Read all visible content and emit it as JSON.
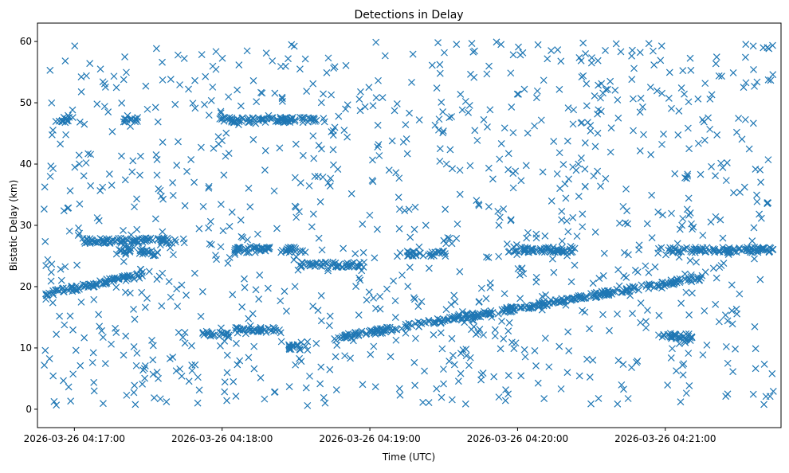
{
  "chart_data": {
    "type": "scatter",
    "title": "Detections in Delay",
    "xlabel": "Time (UTC)",
    "ylabel": "Bistatic Delay (km)",
    "x_axis": {
      "kind": "time",
      "range": [
        "2026-03-26 04:16:45",
        "2026-03-26 04:21:47"
      ],
      "ticks": [
        "2026-03-26 04:17:00",
        "2026-03-26 04:18:00",
        "2026-03-26 04:19:00",
        "2026-03-26 04:20:00",
        "2026-03-26 04:21:00"
      ]
    },
    "y_axis": {
      "range": [
        -3,
        63
      ],
      "ticks": [
        "0",
        "10",
        "20",
        "30",
        "40",
        "50",
        "60"
      ]
    },
    "grid": false,
    "legend": "none",
    "marker": "x",
    "color": "#1f77b4",
    "series": [
      {
        "segments": [
          {
            "start": "2026-03-26 04:16:48",
            "end": "2026-03-26 04:17:31",
            "y_start": 18.8,
            "y_end": 22.2
          },
          {
            "start": "2026-03-26 04:18:45",
            "end": "2026-03-26 04:21:15",
            "y_start": 11.5,
            "y_end": 21.5
          },
          {
            "start": "2026-03-26 04:17:18",
            "end": "2026-03-26 04:17:34",
            "y_start": 26.3,
            "y_end": 25.4
          },
          {
            "start": "2026-03-26 04:18:05",
            "end": "2026-03-26 04:18:34",
            "y_start": 26.0,
            "y_end": 26.0
          },
          {
            "start": "2026-03-26 04:19:15",
            "end": "2026-03-26 04:19:31",
            "y_start": 25.4,
            "y_end": 25.4
          },
          {
            "start": "2026-03-26 04:19:56",
            "end": "2026-03-26 04:20:24",
            "y_start": 26.0,
            "y_end": 26.0
          },
          {
            "start": "2026-03-26 04:20:58",
            "end": "2026-03-26 04:21:44",
            "y_start": 26.0,
            "y_end": 26.0
          },
          {
            "start": "2026-03-26 04:17:03",
            "end": "2026-03-26 04:17:45",
            "y_start": 27.5,
            "y_end": 27.5
          },
          {
            "start": "2026-03-26 04:18:31",
            "end": "2026-03-26 04:18:58",
            "y_start": 23.6,
            "y_end": 23.6
          },
          {
            "start": "2026-03-26 04:17:52",
            "end": "2026-03-26 04:18:03",
            "y_start": 12.3,
            "y_end": 12.0
          },
          {
            "start": "2026-03-26 04:18:05",
            "end": "2026-03-26 04:18:24",
            "y_start": 12.9,
            "y_end": 12.9
          },
          {
            "start": "2026-03-26 04:18:27",
            "end": "2026-03-26 04:18:35",
            "y_start": 10.1,
            "y_end": 10.1
          },
          {
            "start": "2026-03-26 04:20:57",
            "end": "2026-03-26 04:21:11",
            "y_start": 12.1,
            "y_end": 11.6
          },
          {
            "start": "2026-03-26 04:16:55",
            "end": "2026-03-26 04:17:00",
            "y_start": 47.2,
            "y_end": 47.2
          },
          {
            "start": "2026-03-26 04:17:20",
            "end": "2026-03-26 04:17:26",
            "y_start": 47.2,
            "y_end": 47.2
          },
          {
            "start": "2026-03-26 04:17:59",
            "end": "2026-03-26 04:18:42",
            "y_start": 47.2,
            "y_end": 47.2
          }
        ]
      }
    ]
  }
}
